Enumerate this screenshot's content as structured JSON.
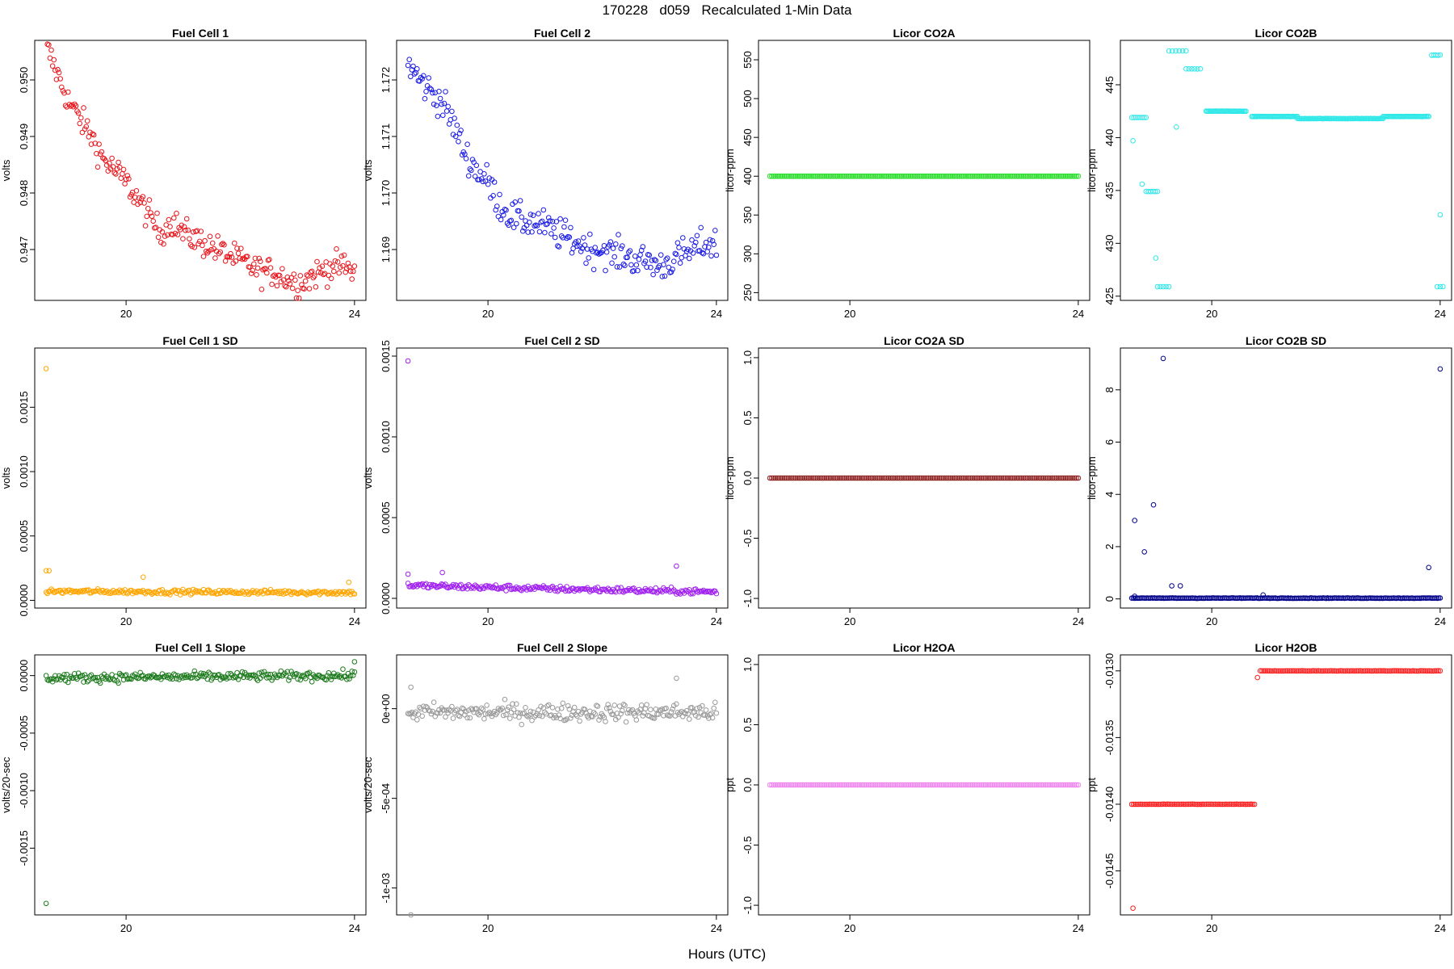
{
  "figure": {
    "title": "170228   d059   Recalculated 1-Min Data",
    "xlabel": "Hours (UTC)"
  },
  "chart_data": [
    {
      "type": "scatter",
      "title": "Fuel Cell 1",
      "ylabel": "volts",
      "xlim": [
        18.4,
        24.2
      ],
      "ylim": [
        946.1,
        950.7
      ],
      "yscale": 1000,
      "yticks": [
        "0.947",
        "0.948",
        "0.949",
        "0.950"
      ],
      "ytickvals": [
        947,
        948,
        949,
        950
      ],
      "xticks": [
        "20",
        "24"
      ],
      "xtickvals": [
        20,
        24
      ],
      "color": "#e8141a",
      "points": "18.6:950.6,18.8:950.1,19.0:949.6,19.2:949.3,19.4:949.0,19.6:948.6,19.8:948.4,20.0:948.2,20.2:947.9,20.4:947.6,20.6:947.3,20.8:947.5,21.0:947.3,21.2:947.2,21.4:947.1,21.6:947.0,21.8:946.9,22.0:946.8,22.2:946.7,22.4:946.6,22.6:946.6,22.8:946.5,23.0:946.4,23.2:946.5,23.4:946.6,23.6:946.7,23.8:946.7,24.0:946.6",
      "noise": 0.25,
      "n": 240
    },
    {
      "type": "scatter",
      "title": "Fuel Cell 2",
      "ylabel": "volts",
      "xlim": [
        18.4,
        24.2
      ],
      "ylim": [
        1168.1,
        1172.7
      ],
      "yscale": 1000,
      "yticks": [
        "1.169",
        "1.170",
        "1.171",
        "1.172"
      ],
      "ytickvals": [
        1169,
        1170,
        1171,
        1172
      ],
      "xticks": [
        "20",
        "24"
      ],
      "xtickvals": [
        20,
        24
      ],
      "color": "#1a1ae6",
      "points": "18.6:1172.3,18.8:1172.0,19.0:1171.8,19.2:1171.6,19.4:1171.2,19.6:1170.7,19.8:1170.4,20.0:1170.2,20.2:1169.8,20.4:1169.6,20.6:1169.5,20.8:1169.5,21.0:1169.4,21.2:1169.3,21.4:1169.2,21.6:1169.1,21.8:1169.0,22.0:1169.0,22.2:1168.9,22.4:1168.9,22.6:1168.8,22.8:1168.8,23.0:1168.7,23.2:1168.8,23.4:1168.9,23.6:1169.0,23.8:1169.1,24.0:1169.1",
      "noise": 0.28,
      "n": 240
    },
    {
      "type": "scatter",
      "title": "Licor CO2A",
      "ylabel": "licor-ppm",
      "xlim": [
        18.4,
        24.2
      ],
      "ylim": [
        240,
        575
      ],
      "yticks": [
        "250",
        "300",
        "350",
        "400",
        "450",
        "500",
        "550"
      ],
      "ytickvals": [
        250,
        300,
        350,
        400,
        450,
        500,
        550
      ],
      "xticks": [
        "20",
        "24"
      ],
      "xtickvals": [
        20,
        24
      ],
      "color": "#22dd22",
      "points": "18.6:400,24.0:400",
      "noise": 0,
      "n": 170
    },
    {
      "type": "scatter",
      "title": "Licor CO2B",
      "ylabel": "licor-ppm",
      "xlim": [
        18.4,
        24.2
      ],
      "ylim": [
        424.6,
        449.2
      ],
      "yticks": [
        "425",
        "430",
        "435",
        "440",
        "445"
      ],
      "ytickvals": [
        425,
        430,
        435,
        440,
        445
      ],
      "xticks": [
        "20",
        "24"
      ],
      "xtickvals": [
        20,
        24
      ],
      "color": "#2ee8e8",
      "segments": [
        [
          18.6,
          18.85,
          441.9,
          8
        ],
        [
          18.85,
          19.05,
          434.9,
          6
        ],
        [
          19.05,
          19.25,
          425.9,
          5
        ],
        [
          19.25,
          19.55,
          448.2,
          6
        ],
        [
          19.55,
          19.8,
          446.5,
          6
        ],
        [
          19.9,
          20.6,
          442.5,
          35
        ],
        [
          20.7,
          21.5,
          442.0,
          40
        ],
        [
          21.5,
          23.0,
          441.8,
          70
        ],
        [
          23.0,
          23.8,
          442.0,
          40
        ],
        [
          23.85,
          24.0,
          447.8,
          5
        ],
        [
          23.95,
          24.05,
          425.9,
          3
        ]
      ],
      "extra": [
        [
          18.62,
          439.7
        ],
        [
          18.78,
          435.6
        ],
        [
          19.02,
          428.6
        ],
        [
          19.38,
          441.0
        ],
        [
          24.0,
          432.7
        ]
      ]
    },
    {
      "type": "scatter",
      "title": "Fuel Cell 1 SD",
      "ylabel": "volts",
      "xlim": [
        18.4,
        24.2
      ],
      "ylim": [
        -6e-05,
        0.00196
      ],
      "yticks": [
        "0.0000",
        "0.0005",
        "0.0010",
        "0.0015"
      ],
      "ytickvals": [
        0,
        0.0005,
        0.001,
        0.0015
      ],
      "xticks": [
        "20",
        "24"
      ],
      "xtickvals": [
        20,
        24
      ],
      "color": "#ffa500",
      "points": "18.6:0.00007,24.0:0.00006",
      "noise": 1.8e-05,
      "n": 240,
      "extra": [
        [
          18.6,
          0.0018
        ],
        [
          18.6,
          0.00023
        ],
        [
          18.65,
          0.00023
        ],
        [
          20.3,
          0.00018
        ],
        [
          23.9,
          0.00014
        ]
      ]
    },
    {
      "type": "scatter",
      "title": "Fuel Cell 2 SD",
      "ylabel": "volts",
      "xlim": [
        18.4,
        24.2
      ],
      "ylim": [
        -6e-05,
        0.00155
      ],
      "yticks": [
        "0.0000",
        "0.0005",
        "0.0010",
        "0.0015"
      ],
      "ytickvals": [
        0,
        0.0005,
        0.001,
        0.0015
      ],
      "xticks": [
        "20",
        "24"
      ],
      "xtickvals": [
        20,
        24
      ],
      "color": "#a020f0",
      "points": "18.6:0.00008,21.0:0.00006,24.0:0.00004",
      "noise": 1.8e-05,
      "n": 240,
      "extra": [
        [
          18.6,
          0.00147
        ],
        [
          18.6,
          0.00015
        ],
        [
          19.2,
          0.00016
        ],
        [
          23.3,
          0.0002
        ]
      ]
    },
    {
      "type": "scatter",
      "title": "Licor CO2A SD",
      "ylabel": "licor-ppm",
      "xlim": [
        18.4,
        24.2
      ],
      "ylim": [
        -1.08,
        1.08
      ],
      "yticks": [
        "-1.0",
        "-0.5",
        "0.0",
        "0.5",
        "1.0"
      ],
      "ytickvals": [
        -1,
        -0.5,
        0,
        0.5,
        1
      ],
      "xticks": [
        "20",
        "24"
      ],
      "xtickvals": [
        20,
        24
      ],
      "color": "#8b1a1a",
      "points": "18.6:0,24.0:0",
      "noise": 0,
      "n": 170
    },
    {
      "type": "scatter",
      "title": "Licor CO2B SD",
      "ylabel": "licor-ppm",
      "xlim": [
        18.4,
        24.2
      ],
      "ylim": [
        -0.35,
        9.6
      ],
      "yticks": [
        "0",
        "2",
        "4",
        "6",
        "8"
      ],
      "ytickvals": [
        0,
        2,
        4,
        6,
        8
      ],
      "xticks": [
        "20",
        "24"
      ],
      "xtickvals": [
        20,
        24
      ],
      "color": "#00008b",
      "points": "18.6:0.03,24.0:0.03",
      "noise": 0.01,
      "n": 220,
      "extra": [
        [
          18.65,
          3.0
        ],
        [
          18.82,
          1.8
        ],
        [
          18.98,
          3.6
        ],
        [
          19.15,
          9.2
        ],
        [
          19.3,
          0.5
        ],
        [
          19.45,
          0.5
        ],
        [
          23.8,
          1.2
        ],
        [
          24.0,
          8.8
        ],
        [
          18.65,
          0.1
        ],
        [
          20.9,
          0.15
        ]
      ]
    },
    {
      "type": "scatter",
      "title": "Fuel Cell 1 Slope",
      "ylabel": "volts/20-sec",
      "xlim": [
        18.4,
        24.2
      ],
      "ylim": [
        -0.00208,
        0.00018
      ],
      "yticks": [
        "-0.0015",
        "-0.0010",
        "-0.0005",
        "0.0000"
      ],
      "ytickvals": [
        -0.0015,
        -0.001,
        -0.0005,
        0
      ],
      "xticks": [
        "20",
        "24"
      ],
      "xtickvals": [
        20,
        24
      ],
      "color": "#1c7a1c",
      "points": "18.6:-0.00002,24.0:0.00000",
      "noise": 4e-05,
      "n": 240,
      "extra": [
        [
          18.6,
          -0.00198
        ],
        [
          24.0,
          0.00012
        ]
      ]
    },
    {
      "type": "scatter",
      "title": "Fuel Cell 2 Slope",
      "ylabel": "volts/20-sec",
      "xlim": [
        18.4,
        24.2
      ],
      "ylim": [
        -0.00115,
        0.0003
      ],
      "yticks": [
        "-1e-03",
        "-5e-04",
        "0e+00"
      ],
      "ytickvals": [
        -0.001,
        -0.0005,
        0
      ],
      "xticks": [
        "20",
        "24"
      ],
      "xtickvals": [
        20,
        24
      ],
      "color": "#999999",
      "points": "18.6:-0.00002,24.0:-0.00002",
      "noise": 5e-05,
      "n": 240,
      "extra": [
        [
          18.65,
          -0.00115
        ],
        [
          18.65,
          0.00012
        ],
        [
          23.3,
          0.00017
        ]
      ]
    },
    {
      "type": "scatter",
      "title": "Licor H2OA",
      "ylabel": "ppt",
      "xlim": [
        18.4,
        24.2
      ],
      "ylim": [
        -1.08,
        1.08
      ],
      "yticks": [
        "-1.0",
        "-0.5",
        "0.0",
        "0.5",
        "1.0"
      ],
      "ytickvals": [
        -1,
        -0.5,
        0,
        0.5,
        1
      ],
      "xticks": [
        "20",
        "24"
      ],
      "xtickvals": [
        20,
        24
      ],
      "color": "#ee82ee",
      "points": "18.6:0,24.0:0",
      "noise": 0,
      "n": 170
    },
    {
      "type": "scatter",
      "title": "Licor H2OB",
      "ylabel": "ppt",
      "xlim": [
        18.4,
        24.2
      ],
      "ylim": [
        -0.01483,
        -0.01288
      ],
      "yticks": [
        "-0.0145",
        "-0.0140",
        "-0.0135",
        "-0.0130"
      ],
      "ytickvals": [
        -0.0145,
        -0.014,
        -0.0135,
        -0.013
      ],
      "xticks": [
        "20",
        "24"
      ],
      "xtickvals": [
        20,
        24
      ],
      "color": "#ff1a1a",
      "segments": [
        [
          18.6,
          20.75,
          -0.014,
          70
        ],
        [
          20.85,
          24.0,
          -0.013,
          100
        ]
      ],
      "extra": [
        [
          18.62,
          -0.01478
        ],
        [
          20.8,
          -0.01305
        ]
      ]
    }
  ]
}
